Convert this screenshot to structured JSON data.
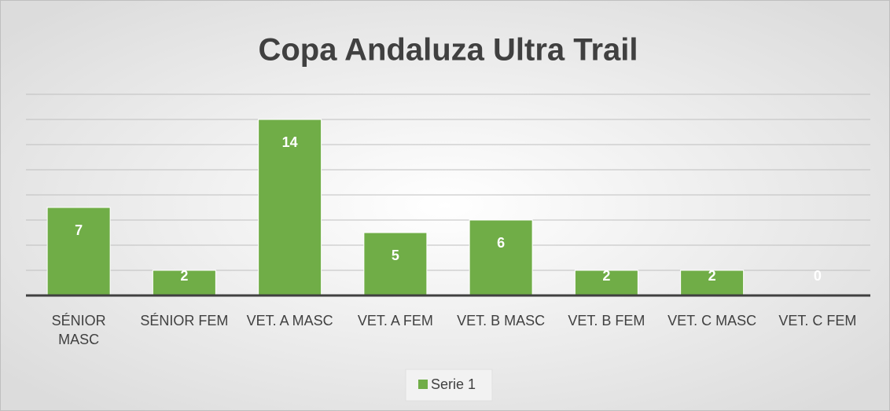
{
  "chart_data": {
    "type": "bar",
    "title": "Copa Andaluza Ultra Trail",
    "categories": [
      "SÉNIOR MASC",
      "SÉNIOR FEM",
      "VET. A MASC",
      "VET. A FEM",
      "VET. B MASC",
      "VET. B FEM",
      "VET. C MASC",
      "VET. C FEM"
    ],
    "series": [
      {
        "name": "Serie 1",
        "color": "#70ad47",
        "values": [
          7,
          2,
          14,
          5,
          6,
          2,
          2,
          0
        ]
      }
    ],
    "ylim": [
      0,
      16
    ],
    "yticks": [
      0,
      2,
      4,
      6,
      8,
      10,
      12,
      14,
      16
    ],
    "grid": true,
    "legend": "bottom"
  }
}
